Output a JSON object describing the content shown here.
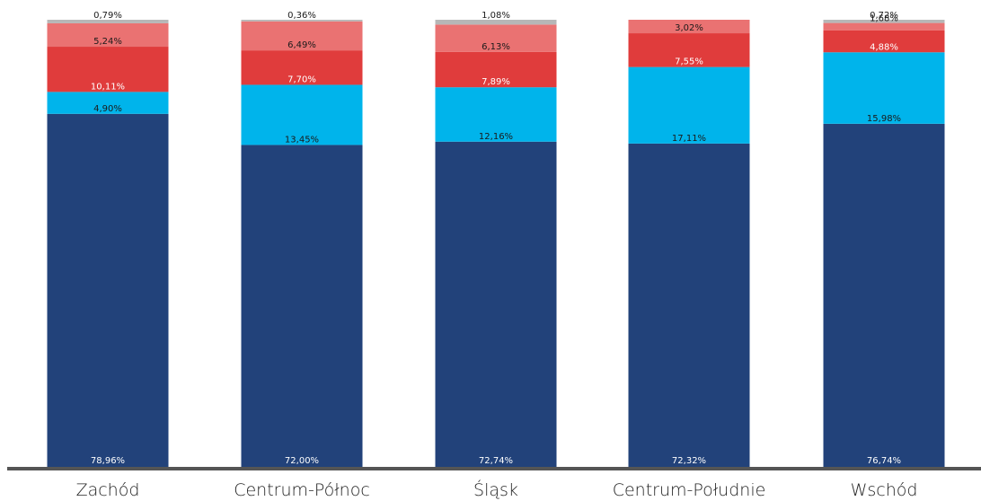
{
  "chart_data": {
    "type": "bar",
    "stacked": true,
    "percent_stacked": true,
    "categories": [
      "Zachód",
      "Centrum-Północ",
      "Śląsk",
      "Centrum-Południe",
      "Wschód"
    ],
    "series": [
      {
        "values": [
          78.96,
          72.0,
          72.74,
          72.32,
          76.74
        ],
        "value_labels": [
          "78,96%",
          "72,00%",
          "72,74%",
          "72,32%",
          "76,74%"
        ],
        "color": "#22427a",
        "label_color": "#ffffff"
      },
      {
        "values": [
          4.9,
          13.45,
          12.16,
          17.11,
          15.98
        ],
        "value_labels": [
          "4,90%",
          "13,45%",
          "12,16%",
          "17,11%",
          "15,98%"
        ],
        "color": "#00b4eb",
        "label_color": "#1a1a1a"
      },
      {
        "values": [
          10.11,
          7.7,
          7.89,
          7.55,
          4.88
        ],
        "value_labels": [
          "10,11%",
          "7,70%",
          "7,89%",
          "7,55%",
          "4,88%"
        ],
        "color": "#e03c3c",
        "label_color": "#ffffff"
      },
      {
        "values": [
          5.24,
          6.49,
          6.13,
          3.02,
          1.68
        ],
        "value_labels": [
          "5,24%",
          "6,49%",
          "6,13%",
          "3,02%",
          "1,68%"
        ],
        "color": "#ea7272",
        "label_color": "#1a1a1a"
      },
      {
        "values": [
          0.79,
          0.36,
          1.08,
          0.0,
          0.72
        ],
        "value_labels": [
          "0,79%",
          "0,36%",
          "1,08%",
          "",
          "0,72%"
        ],
        "color": "#b7b7b7",
        "label_color": "#1a1a1a"
      }
    ],
    "ylim": [
      0,
      100
    ],
    "title": "",
    "xlabel": "",
    "ylabel": "",
    "grid": false,
    "legend": "none",
    "axis_color": "#555555"
  }
}
